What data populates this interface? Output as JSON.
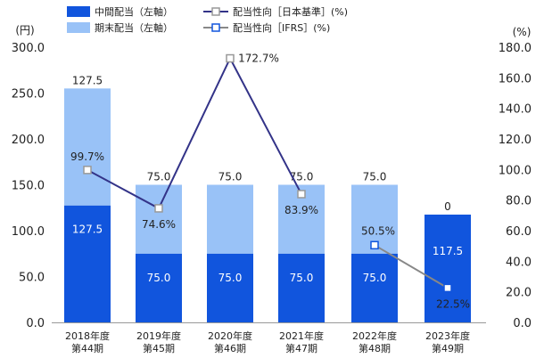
{
  "colors": {
    "interim": "#1155dd",
    "yearend": "#99c2f7",
    "payout_jgaap": "#333388",
    "payout_ifrs": "#888888",
    "marker_ifrs_border": "#1155dd"
  },
  "chart_data": {
    "type": "bar",
    "stacked": true,
    "categories": [
      [
        "2018年度",
        "第44期"
      ],
      [
        "2019年度",
        "第45期"
      ],
      [
        "2020年度",
        "第46期"
      ],
      [
        "2021年度",
        "第47期"
      ],
      [
        "2022年度",
        "第48期"
      ],
      [
        "2023年度",
        "第49期"
      ]
    ],
    "left_axis": {
      "unit": "(円)",
      "range": [
        0,
        300
      ],
      "ticks": [
        "0.0",
        "50.0",
        "100.0",
        "150.0",
        "200.0",
        "250.0",
        "300.0"
      ]
    },
    "right_axis": {
      "unit": "(%)",
      "range": [
        0,
        180
      ],
      "ticks": [
        "0.0",
        "20.0",
        "40.0",
        "60.0",
        "80.0",
        "100.0",
        "120.0",
        "140.0",
        "160.0",
        "180.0"
      ]
    },
    "legend": {
      "interim": "中間配当（左軸）",
      "yearend": "期末配当（左軸）",
      "payout_jgaap": "配当性向［日本基準］(%)",
      "payout_ifrs": "配当性向［IFRS］(%)"
    },
    "series": [
      {
        "name": "中間配当（左軸）",
        "axis": "left",
        "values": [
          127.5,
          75.0,
          75.0,
          75.0,
          75.0,
          117.5
        ],
        "labels": [
          "127.5",
          "75.0",
          "75.0",
          "75.0",
          "75.0",
          "117.5"
        ]
      },
      {
        "name": "期末配当（左軸）",
        "axis": "left",
        "values": [
          127.5,
          75.0,
          75.0,
          75.0,
          75.0,
          0
        ],
        "labels": [
          "127.5",
          "75.0",
          "75.0",
          "75.0",
          "75.0",
          "0"
        ]
      }
    ],
    "lines": [
      {
        "name": "配当性向［日本基準］(%)",
        "axis": "right",
        "values": [
          99.7,
          74.6,
          172.7,
          83.9,
          null,
          null
        ],
        "labels": [
          "99.7%",
          "74.6%",
          "172.7%",
          "83.9%",
          "",
          ""
        ]
      },
      {
        "name": "配当性向［IFRS］(%)",
        "axis": "right",
        "values": [
          null,
          null,
          null,
          null,
          50.5,
          22.5
        ],
        "labels": [
          "",
          "",
          "",
          "",
          "50.5%",
          "22.5%"
        ]
      }
    ]
  }
}
